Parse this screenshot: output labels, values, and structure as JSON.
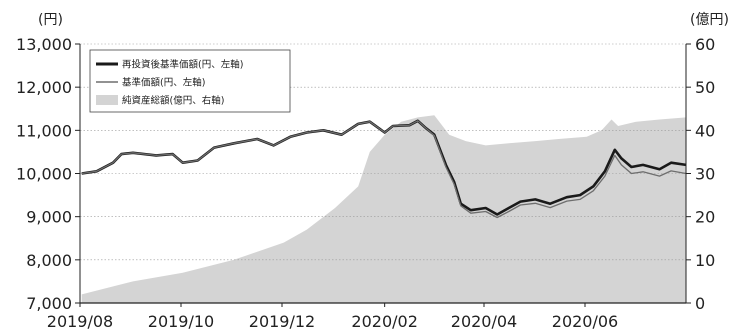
{
  "chart_data": {
    "type": "line",
    "left_axis_unit": "(円)",
    "right_axis_unit": "(億円)",
    "x_tick_labels": [
      "2019/08",
      "2019/10",
      "2019/12",
      "2020/02",
      "2020/04",
      "2020/06"
    ],
    "left_ticks": [
      "7,000",
      "8,000",
      "9,000",
      "10,000",
      "11,000",
      "12,000",
      "13,000"
    ],
    "right_ticks": [
      "0",
      "10",
      "20",
      "30",
      "40",
      "50",
      "60"
    ],
    "ylim_left": [
      7000,
      13000
    ],
    "ylim_right": [
      0,
      60
    ],
    "xlim": [
      "2019-07-31",
      "2020-07-31"
    ],
    "grid": "horizontal",
    "legend_position": "top-left",
    "series": [
      {
        "name": "再投資後基準価額(円、左軸)",
        "axis": "left",
        "style": "thick-dark-line",
        "color": "#1a1a1a",
        "points": [
          [
            "2019-08-01",
            10000
          ],
          [
            "2019-08-10",
            10050
          ],
          [
            "2019-08-20",
            10250
          ],
          [
            "2019-08-25",
            10450
          ],
          [
            "2019-09-01",
            10480
          ],
          [
            "2019-09-15",
            10420
          ],
          [
            "2019-09-25",
            10450
          ],
          [
            "2019-10-01",
            10250
          ],
          [
            "2019-10-10",
            10300
          ],
          [
            "2019-10-20",
            10600
          ],
          [
            "2019-11-01",
            10700
          ],
          [
            "2019-11-15",
            10800
          ],
          [
            "2019-11-25",
            10650
          ],
          [
            "2019-12-05",
            10850
          ],
          [
            "2019-12-15",
            10950
          ],
          [
            "2019-12-25",
            11000
          ],
          [
            "2020-01-05",
            10900
          ],
          [
            "2020-01-15",
            11150
          ],
          [
            "2020-01-22",
            11200
          ],
          [
            "2020-01-31",
            10950
          ],
          [
            "2020-02-05",
            11100
          ],
          [
            "2020-02-15",
            11120
          ],
          [
            "2020-02-20",
            11220
          ],
          [
            "2020-02-25",
            11050
          ],
          [
            "2020-03-01",
            10900
          ],
          [
            "2020-03-08",
            10200
          ],
          [
            "2020-03-13",
            9800
          ],
          [
            "2020-03-17",
            9300
          ],
          [
            "2020-03-23",
            9150
          ],
          [
            "2020-04-01",
            9200
          ],
          [
            "2020-04-08",
            9050
          ],
          [
            "2020-04-15",
            9200
          ],
          [
            "2020-04-22",
            9350
          ],
          [
            "2020-05-01",
            9400
          ],
          [
            "2020-05-10",
            9300
          ],
          [
            "2020-05-20",
            9450
          ],
          [
            "2020-05-28",
            9500
          ],
          [
            "2020-06-05",
            9700
          ],
          [
            "2020-06-12",
            10050
          ],
          [
            "2020-06-18",
            10550
          ],
          [
            "2020-06-22",
            10350
          ],
          [
            "2020-06-28",
            10150
          ],
          [
            "2020-07-05",
            10200
          ],
          [
            "2020-07-15",
            10100
          ],
          [
            "2020-07-22",
            10250
          ],
          [
            "2020-07-31",
            10200
          ]
        ]
      },
      {
        "name": "基準価額(円、左軸)",
        "axis": "left",
        "style": "thin-gray-line",
        "color": "#6e6e6e",
        "points": [
          [
            "2019-08-01",
            10000
          ],
          [
            "2019-08-10",
            10050
          ],
          [
            "2019-08-20",
            10250
          ],
          [
            "2019-08-25",
            10450
          ],
          [
            "2019-09-01",
            10480
          ],
          [
            "2019-09-15",
            10420
          ],
          [
            "2019-09-25",
            10450
          ],
          [
            "2019-10-01",
            10250
          ],
          [
            "2019-10-10",
            10300
          ],
          [
            "2019-10-20",
            10600
          ],
          [
            "2019-11-01",
            10700
          ],
          [
            "2019-11-15",
            10800
          ],
          [
            "2019-11-25",
            10650
          ],
          [
            "2019-12-05",
            10850
          ],
          [
            "2019-12-15",
            10950
          ],
          [
            "2019-12-25",
            11000
          ],
          [
            "2020-01-05",
            10900
          ],
          [
            "2020-01-15",
            11150
          ],
          [
            "2020-01-22",
            11200
          ],
          [
            "2020-01-31",
            10950
          ],
          [
            "2020-02-05",
            11100
          ],
          [
            "2020-02-15",
            11120
          ],
          [
            "2020-02-20",
            11220
          ],
          [
            "2020-02-25",
            11050
          ],
          [
            "2020-03-01",
            10880
          ],
          [
            "2020-03-08",
            10150
          ],
          [
            "2020-03-13",
            9750
          ],
          [
            "2020-03-17",
            9250
          ],
          [
            "2020-03-23",
            9080
          ],
          [
            "2020-04-01",
            9120
          ],
          [
            "2020-04-08",
            8980
          ],
          [
            "2020-04-15",
            9120
          ],
          [
            "2020-04-22",
            9270
          ],
          [
            "2020-05-01",
            9310
          ],
          [
            "2020-05-10",
            9210
          ],
          [
            "2020-05-20",
            9360
          ],
          [
            "2020-05-28",
            9400
          ],
          [
            "2020-06-05",
            9600
          ],
          [
            "2020-06-12",
            9940
          ],
          [
            "2020-06-18",
            10420
          ],
          [
            "2020-06-22",
            10200
          ],
          [
            "2020-06-28",
            10000
          ],
          [
            "2020-07-05",
            10040
          ],
          [
            "2020-07-15",
            9940
          ],
          [
            "2020-07-22",
            10060
          ],
          [
            "2020-07-31",
            10000
          ]
        ]
      },
      {
        "name": "純資産総額(億円、右軸)",
        "axis": "right",
        "style": "area",
        "color": "#d4d4d4",
        "points": [
          [
            "2019-08-01",
            2
          ],
          [
            "2019-09-01",
            5
          ],
          [
            "2019-10-01",
            7
          ],
          [
            "2019-11-01",
            10
          ],
          [
            "2019-12-01",
            14
          ],
          [
            "2019-12-15",
            17
          ],
          [
            "2020-01-01",
            22
          ],
          [
            "2020-01-15",
            27
          ],
          [
            "2020-01-22",
            35
          ],
          [
            "2020-01-31",
            39
          ],
          [
            "2020-02-10",
            42
          ],
          [
            "2020-02-20",
            43
          ],
          [
            "2020-03-01",
            43.5
          ],
          [
            "2020-03-10",
            39
          ],
          [
            "2020-03-20",
            37.5
          ],
          [
            "2020-04-01",
            36.5
          ],
          [
            "2020-04-15",
            37
          ],
          [
            "2020-05-01",
            37.5
          ],
          [
            "2020-05-15",
            38
          ],
          [
            "2020-06-01",
            38.5
          ],
          [
            "2020-06-10",
            40
          ],
          [
            "2020-06-16",
            42.5
          ],
          [
            "2020-06-20",
            41
          ],
          [
            "2020-07-01",
            42
          ],
          [
            "2020-07-15",
            42.5
          ],
          [
            "2020-07-31",
            43
          ]
        ]
      }
    ]
  }
}
